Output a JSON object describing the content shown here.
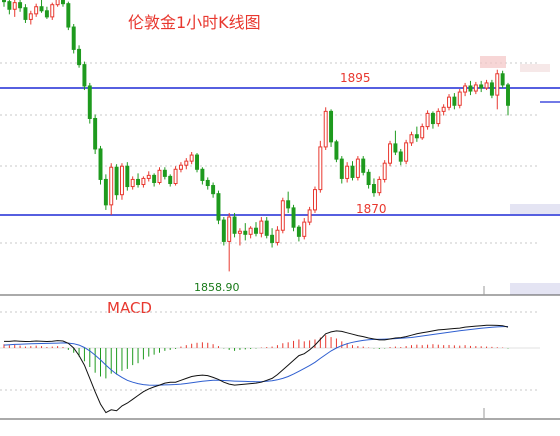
{
  "chart_data": [
    {
      "type": "candlestick",
      "title": "伦敦金1小时K线图",
      "levels": [
        {
          "label": "1895",
          "value": 1895
        },
        {
          "label": "1870",
          "value": 1870
        }
      ],
      "low_annotation": {
        "label": "1858.90",
        "value": 1858.9
      },
      "colors": {
        "up": "#e8382f",
        "down": "#1e9a1e",
        "level_line": "#1f2ad6"
      },
      "candles": [
        [
          1914.5,
          1916,
          1911,
          1912
        ],
        [
          1912,
          1913.2,
          1909.5,
          1910.5
        ],
        [
          1910.5,
          1912.5,
          1909,
          1911.8
        ],
        [
          1911.8,
          1913,
          1910,
          1910.8
        ],
        [
          1910.8,
          1911.5,
          1907.8,
          1908.5
        ],
        [
          1908.5,
          1910.2,
          1907.5,
          1909.6
        ],
        [
          1909.6,
          1911.6,
          1909,
          1911
        ],
        [
          1911,
          1912.4,
          1909.8,
          1910.2
        ],
        [
          1910.2,
          1911,
          1908.6,
          1909
        ],
        [
          1909,
          1911.8,
          1908.4,
          1911.4
        ],
        [
          1911.4,
          1914.2,
          1911,
          1913.6
        ],
        [
          1913.6,
          1915,
          1911,
          1911.6
        ],
        [
          1911.6,
          1912,
          1906.4,
          1907
        ],
        [
          1907,
          1907.6,
          1901.8,
          1902.6
        ],
        [
          1902.6,
          1903.4,
          1899,
          1899.6
        ],
        [
          1899.6,
          1900.2,
          1894.6,
          1895.4
        ],
        [
          1895.4,
          1896,
          1888,
          1889
        ],
        [
          1889,
          1889.8,
          1882,
          1883
        ],
        [
          1883,
          1883.6,
          1876,
          1877
        ],
        [
          1877,
          1878,
          1871,
          1872
        ],
        [
          1872,
          1880.2,
          1870,
          1879.4
        ],
        [
          1879.4,
          1880,
          1873,
          1874
        ],
        [
          1874,
          1880.2,
          1873,
          1879.6
        ],
        [
          1879.6,
          1880.4,
          1874.8,
          1875.6
        ],
        [
          1875.6,
          1877.6,
          1875,
          1877
        ],
        [
          1877,
          1878.2,
          1875.4,
          1876
        ],
        [
          1876,
          1877.6,
          1875.4,
          1877.2
        ],
        [
          1877.2,
          1878.6,
          1876.6,
          1877.8
        ],
        [
          1877.8,
          1878.2,
          1875.6,
          1876.4
        ],
        [
          1876.4,
          1879.4,
          1876,
          1878.8
        ],
        [
          1878.8,
          1879.4,
          1877,
          1877.6
        ],
        [
          1877.6,
          1878,
          1875.6,
          1876.2
        ],
        [
          1876.2,
          1879.6,
          1875.8,
          1879
        ],
        [
          1879,
          1880.4,
          1878.4,
          1879.8
        ],
        [
          1879.8,
          1881.2,
          1879,
          1880.6
        ],
        [
          1880.6,
          1882.4,
          1880,
          1881.8
        ],
        [
          1881.8,
          1882.2,
          1878.4,
          1879
        ],
        [
          1879,
          1879.4,
          1876,
          1876.8
        ],
        [
          1876.8,
          1877.4,
          1875,
          1875.8
        ],
        [
          1875.8,
          1876.4,
          1873.4,
          1874.2
        ],
        [
          1874.2,
          1874.8,
          1868.2,
          1869
        ],
        [
          1869,
          1869.6,
          1864,
          1864.8
        ],
        [
          1864.8,
          1870.4,
          1858.9,
          1869.6
        ],
        [
          1869.6,
          1870.4,
          1865.6,
          1866.4
        ],
        [
          1866.4,
          1867.4,
          1864,
          1866.8
        ],
        [
          1866.8,
          1868.4,
          1865,
          1866.2
        ],
        [
          1866.2,
          1867.8,
          1865.4,
          1867.4
        ],
        [
          1867.4,
          1868.6,
          1865.8,
          1866.4
        ],
        [
          1866.4,
          1869.6,
          1865.6,
          1868.8
        ],
        [
          1868.8,
          1869.6,
          1865.4,
          1866
        ],
        [
          1866,
          1867.4,
          1863.6,
          1864.6
        ],
        [
          1864.6,
          1867.8,
          1864,
          1867
        ],
        [
          1867,
          1873.4,
          1866.4,
          1872.8
        ],
        [
          1872.8,
          1874.6,
          1870.4,
          1871.4
        ],
        [
          1871.4,
          1872,
          1866.8,
          1867.6
        ],
        [
          1867.6,
          1868,
          1864.8,
          1865.8
        ],
        [
          1865.8,
          1869.4,
          1865.2,
          1868.6
        ],
        [
          1868.6,
          1871.6,
          1868,
          1871
        ],
        [
          1871,
          1875.6,
          1870.4,
          1875
        ],
        [
          1875,
          1884.6,
          1874.4,
          1883.4
        ],
        [
          1883.4,
          1891.2,
          1882.8,
          1890.4
        ],
        [
          1890.4,
          1890.8,
          1883.4,
          1884.4
        ],
        [
          1884.4,
          1884.8,
          1880.4,
          1881
        ],
        [
          1881,
          1881.6,
          1876.2,
          1877.2
        ],
        [
          1877.2,
          1880.4,
          1876.4,
          1879.6
        ],
        [
          1879.6,
          1880.6,
          1876.8,
          1877.4
        ],
        [
          1877.4,
          1881.6,
          1876.8,
          1881
        ],
        [
          1881,
          1881.6,
          1877.8,
          1878.4
        ],
        [
          1878.4,
          1879,
          1875.2,
          1876
        ],
        [
          1876,
          1877.2,
          1873.6,
          1874.4
        ],
        [
          1874.4,
          1877.6,
          1873.8,
          1877
        ],
        [
          1877,
          1880.8,
          1876.4,
          1880.2
        ],
        [
          1880.2,
          1884.6,
          1879.6,
          1884
        ],
        [
          1884,
          1886.6,
          1881.8,
          1882.4
        ],
        [
          1882.4,
          1883,
          1879.8,
          1880.6
        ],
        [
          1880.6,
          1884.8,
          1880,
          1884.2
        ],
        [
          1884.2,
          1886.4,
          1883.6,
          1885.8
        ],
        [
          1885.8,
          1887.4,
          1884.4,
          1885.2
        ],
        [
          1885.2,
          1888,
          1884.8,
          1887.4
        ],
        [
          1887.4,
          1890.6,
          1886.8,
          1890
        ],
        [
          1890,
          1890.4,
          1887,
          1888
        ],
        [
          1888,
          1891,
          1887.4,
          1890.4
        ],
        [
          1890.4,
          1891.8,
          1889.6,
          1891.2
        ],
        [
          1891.2,
          1893.8,
          1890.6,
          1893.2
        ],
        [
          1893.2,
          1894,
          1890.8,
          1891.6
        ],
        [
          1891.6,
          1894.8,
          1891,
          1894.2
        ],
        [
          1894.2,
          1896,
          1893.4,
          1895.4
        ],
        [
          1895.4,
          1896.4,
          1893.6,
          1894.4
        ],
        [
          1894.4,
          1896.2,
          1893.8,
          1895.6
        ],
        [
          1895.6,
          1896.4,
          1894.2,
          1895
        ],
        [
          1895,
          1896.6,
          1894.6,
          1896
        ],
        [
          1896,
          1896.6,
          1893,
          1893.6
        ],
        [
          1893.6,
          1898.6,
          1890.8,
          1897.8
        ],
        [
          1897.8,
          1898.4,
          1895,
          1895.6
        ],
        [
          1895.6,
          1896,
          1889.6,
          1891.6
        ]
      ],
      "macd": {
        "histogram": [
          0.4,
          0.3,
          0.35,
          0.25,
          0.15,
          0.2,
          0.25,
          0.2,
          0.1,
          0.15,
          0.2,
          0.1,
          -0.2,
          -0.5,
          -0.9,
          -1.4,
          -2.0,
          -2.6,
          -3.0,
          -3.2,
          -2.7,
          -2.8,
          -2.4,
          -2.2,
          -1.8,
          -1.6,
          -1.2,
          -0.9,
          -0.7,
          -0.5,
          -0.3,
          -0.2,
          -0.1,
          0.15,
          0.3,
          0.45,
          0.55,
          0.6,
          0.55,
          0.4,
          0.2,
          -0.05,
          -0.2,
          -0.3,
          -0.2,
          -0.15,
          -0.1,
          -0.05,
          0.05,
          0.1,
          0.15,
          0.3,
          0.5,
          0.6,
          0.75,
          0.9,
          0.7,
          0.8,
          0.9,
          1.1,
          1.35,
          1.15,
          1.0,
          0.7,
          0.5,
          0.3,
          0.2,
          0.15,
          0.05,
          -0.05,
          -0.1,
          -0.05,
          0.1,
          0.15,
          0.1,
          0.2,
          0.3,
          0.35,
          0.3,
          0.35,
          0.4,
          0.35,
          0.3,
          0.32,
          0.28,
          0.25,
          0.3,
          0.22,
          0.2,
          0.18,
          0.15,
          0.12,
          0.08,
          0.05,
          -0.05
        ],
        "dif": [
          0.7,
          0.7,
          0.75,
          0.72,
          0.68,
          0.7,
          0.74,
          0.72,
          0.68,
          0.72,
          0.78,
          0.74,
          0.5,
          0.0,
          -0.8,
          -1.8,
          -3.2,
          -4.6,
          -5.9,
          -6.8,
          -6.5,
          -6.6,
          -6.1,
          -5.8,
          -5.4,
          -5.0,
          -4.6,
          -4.3,
          -4.1,
          -3.9,
          -3.7,
          -3.6,
          -3.6,
          -3.4,
          -3.2,
          -3.0,
          -2.9,
          -2.85,
          -2.9,
          -3.1,
          -3.3,
          -3.6,
          -3.8,
          -3.9,
          -3.85,
          -3.8,
          -3.75,
          -3.7,
          -3.6,
          -3.4,
          -3.2,
          -2.8,
          -2.3,
          -1.8,
          -1.3,
          -0.8,
          -0.6,
          -0.2,
          0.3,
          0.9,
          1.5,
          1.7,
          1.8,
          1.75,
          1.6,
          1.45,
          1.3,
          1.2,
          1.05,
          0.95,
          0.85,
          0.85,
          0.95,
          1.05,
          1.1,
          1.2,
          1.35,
          1.5,
          1.6,
          1.7,
          1.8,
          1.9,
          1.95,
          2.0,
          2.05,
          2.1,
          2.2,
          2.25,
          2.3,
          2.35,
          2.4,
          2.4,
          2.38,
          2.35,
          2.2
        ],
        "dea": [
          0.3,
          0.35,
          0.38,
          0.4,
          0.42,
          0.44,
          0.46,
          0.47,
          0.48,
          0.5,
          0.52,
          0.54,
          0.52,
          0.45,
          0.3,
          0.05,
          -0.3,
          -0.75,
          -1.25,
          -1.8,
          -2.3,
          -2.75,
          -3.1,
          -3.4,
          -3.6,
          -3.75,
          -3.85,
          -3.9,
          -3.92,
          -3.9,
          -3.88,
          -3.86,
          -3.84,
          -3.8,
          -3.74,
          -3.66,
          -3.58,
          -3.5,
          -3.44,
          -3.4,
          -3.4,
          -3.42,
          -3.45,
          -3.48,
          -3.5,
          -3.52,
          -3.54,
          -3.55,
          -3.54,
          -3.5,
          -3.44,
          -3.35,
          -3.2,
          -3.0,
          -2.75,
          -2.45,
          -2.15,
          -1.85,
          -1.5,
          -1.1,
          -0.7,
          -0.3,
          0.0,
          0.25,
          0.45,
          0.6,
          0.72,
          0.8,
          0.86,
          0.9,
          0.92,
          0.94,
          0.96,
          0.99,
          1.02,
          1.06,
          1.11,
          1.18,
          1.26,
          1.34,
          1.42,
          1.5,
          1.58,
          1.66,
          1.74,
          1.81,
          1.88,
          1.95,
          2.01,
          2.07,
          2.13,
          2.18,
          2.22,
          2.25,
          2.26
        ]
      }
    },
    {
      "type": "macd",
      "title": "MACD"
    }
  ]
}
